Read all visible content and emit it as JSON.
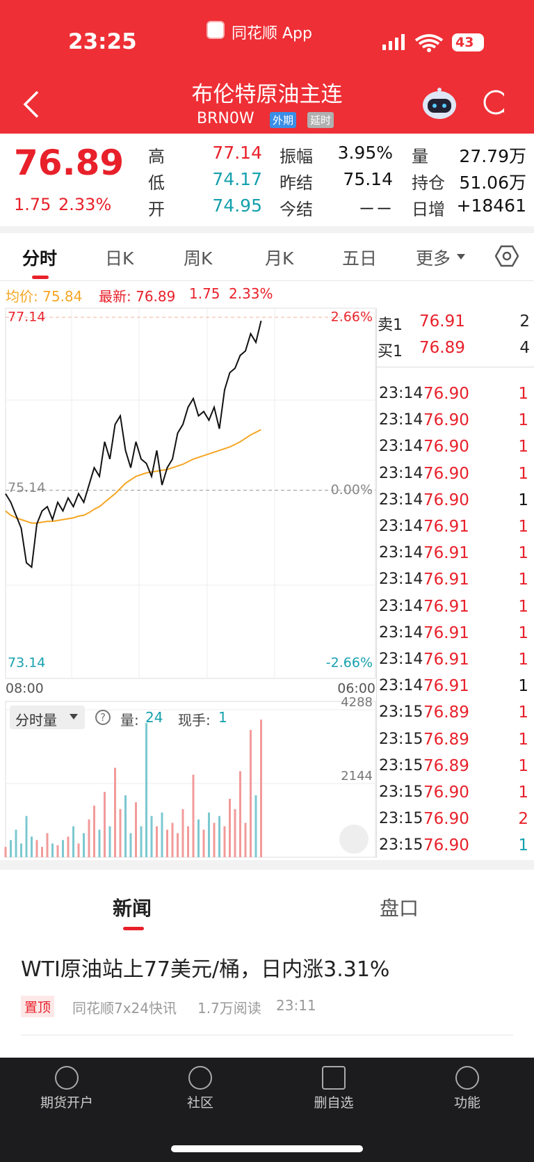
{
  "status_bar": {
    "time": "23:25",
    "app": "同花顺 App",
    "battery": "43"
  },
  "header": {
    "title": "布伦特原油主连",
    "code": "BRN0W",
    "tags": [
      "外期",
      "延时"
    ]
  },
  "quote": {
    "price": "76.89",
    "change": "1.75",
    "change_pct": "2.33%",
    "stats": [
      {
        "label": "高",
        "value": "77.14",
        "color": "#e8202a"
      },
      {
        "label": "振幅",
        "value": "3.95%",
        "color": "#111111"
      },
      {
        "label": "量",
        "value": "27.79万",
        "color": "#111111"
      },
      {
        "label": "低",
        "value": "74.17",
        "color": "#14a0ad"
      },
      {
        "label": "昨结",
        "value": "75.14",
        "color": "#111111"
      },
      {
        "label": "持仓",
        "value": "51.06万",
        "color": "#111111"
      },
      {
        "label": "开",
        "value": "74.95",
        "color": "#14a0ad"
      },
      {
        "label": "今结",
        "value": "－－",
        "color": "#111111"
      },
      {
        "label": "日增",
        "value": "+18461",
        "color": "#111111"
      }
    ]
  },
  "tabs": [
    "分时",
    "日K",
    "周K",
    "月K",
    "五日",
    "更多"
  ],
  "chart_info": {
    "avg_label": "均价: 75.84",
    "latest_label": "最新: 76.89",
    "change": "1.75",
    "change_pct": "2.33%"
  },
  "chart_data": {
    "type": "line",
    "ylim": [
      73.14,
      77.14
    ],
    "yticks": [
      77.14,
      75.14,
      73.14
    ],
    "pct_labels": [
      "2.66%",
      "0.00%",
      "-2.66%"
    ],
    "x_labels": [
      "08:00",
      "06:00"
    ],
    "price": {
      "color": "#111111",
      "values": [
        75.1,
        75.0,
        74.85,
        74.7,
        74.3,
        74.25,
        74.75,
        74.9,
        74.95,
        74.8,
        75.0,
        74.9,
        75.05,
        74.95,
        75.1,
        75.0,
        75.2,
        75.4,
        75.3,
        75.7,
        75.5,
        75.9,
        76.0,
        75.6,
        75.4,
        75.7,
        75.5,
        75.45,
        75.3,
        75.6,
        75.2,
        75.4,
        75.5,
        75.8,
        75.9,
        76.1,
        76.2,
        76.0,
        76.05,
        75.95,
        76.1,
        75.85,
        76.3,
        76.5,
        76.55,
        76.7,
        76.75,
        76.95,
        76.85,
        77.1
      ]
    },
    "average": {
      "color": "#f5a623",
      "values": [
        74.9,
        74.85,
        74.82,
        74.8,
        74.78,
        74.76,
        74.76,
        74.77,
        74.78,
        74.78,
        74.79,
        74.8,
        74.81,
        74.82,
        74.84,
        74.85,
        74.88,
        74.92,
        74.95,
        75.0,
        75.05,
        75.1,
        75.16,
        75.22,
        75.26,
        75.3,
        75.32,
        75.34,
        75.35,
        75.36,
        75.37,
        75.38,
        75.4,
        75.42,
        75.44,
        75.47,
        75.5,
        75.52,
        75.54,
        75.56,
        75.58,
        75.6,
        75.62,
        75.64,
        75.67,
        75.7,
        75.74,
        75.78,
        75.81,
        75.84
      ]
    }
  },
  "volume_chart": {
    "type": "bar",
    "button": "分时量",
    "vol_label": "量:",
    "vol_value": "24",
    "hand_label": "现手:",
    "hand_value": "1",
    "ylim": [
      0,
      4288
    ],
    "yticks": [
      4288,
      2144
    ],
    "up_color": "#f29a9a",
    "down_color": "#7cc8d0",
    "values": [
      300,
      500,
      800,
      400,
      1200,
      600,
      500,
      300,
      700,
      400,
      350,
      500,
      600,
      900,
      400,
      700,
      1100,
      1500,
      800,
      1900,
      900,
      2600,
      1400,
      1800,
      700,
      1600,
      900,
      3900,
      1200,
      900,
      1300,
      800,
      1000,
      700,
      1400,
      900,
      2400,
      1100,
      800,
      1300,
      1000,
      1200,
      900,
      1700,
      1400,
      2500,
      1000,
      3700,
      1800,
      4000
    ]
  },
  "order_book": {
    "quotes": [
      {
        "label": "卖1",
        "price": "76.91",
        "qty": "2"
      },
      {
        "label": "买1",
        "price": "76.89",
        "qty": "4"
      }
    ],
    "trades": [
      {
        "time": "23:14",
        "price": "76.90",
        "qty": "1",
        "qty_color": "#e8202a"
      },
      {
        "time": "23:14",
        "price": "76.90",
        "qty": "1",
        "qty_color": "#e8202a"
      },
      {
        "time": "23:14",
        "price": "76.90",
        "qty": "1",
        "qty_color": "#e8202a"
      },
      {
        "time": "23:14",
        "price": "76.90",
        "qty": "1",
        "qty_color": "#e8202a"
      },
      {
        "time": "23:14",
        "price": "76.90",
        "qty": "1",
        "qty_color": "#111111"
      },
      {
        "time": "23:14",
        "price": "76.91",
        "qty": "1",
        "qty_color": "#e8202a"
      },
      {
        "time": "23:14",
        "price": "76.91",
        "qty": "1",
        "qty_color": "#e8202a"
      },
      {
        "time": "23:14",
        "price": "76.91",
        "qty": "1",
        "qty_color": "#e8202a"
      },
      {
        "time": "23:14",
        "price": "76.91",
        "qty": "1",
        "qty_color": "#e8202a"
      },
      {
        "time": "23:14",
        "price": "76.91",
        "qty": "1",
        "qty_color": "#e8202a"
      },
      {
        "time": "23:14",
        "price": "76.91",
        "qty": "1",
        "qty_color": "#e8202a"
      },
      {
        "time": "23:14",
        "price": "76.91",
        "qty": "1",
        "qty_color": "#111111"
      },
      {
        "time": "23:15",
        "price": "76.89",
        "qty": "1",
        "qty_color": "#e8202a"
      },
      {
        "time": "23:15",
        "price": "76.89",
        "qty": "1",
        "qty_color": "#e8202a"
      },
      {
        "time": "23:15",
        "price": "76.89",
        "qty": "1",
        "qty_color": "#e8202a"
      },
      {
        "time": "23:15",
        "price": "76.90",
        "qty": "1",
        "qty_color": "#e8202a"
      },
      {
        "time": "23:15",
        "price": "76.90",
        "qty": "2",
        "qty_color": "#e8202a"
      },
      {
        "time": "23:15",
        "price": "76.90",
        "qty": "1",
        "qty_color": "#14a0ad"
      }
    ]
  },
  "news": {
    "tabs": [
      "新闻",
      "盘口"
    ],
    "headline": "WTI原油站上77美元/桶，日内涨3.31%",
    "tag": "置顶",
    "source": "同花顺7x24快讯",
    "reads": "1.7万阅读",
    "time": "23:11"
  },
  "nav": [
    "期货开户",
    "社区",
    "删自选",
    "功能"
  ]
}
